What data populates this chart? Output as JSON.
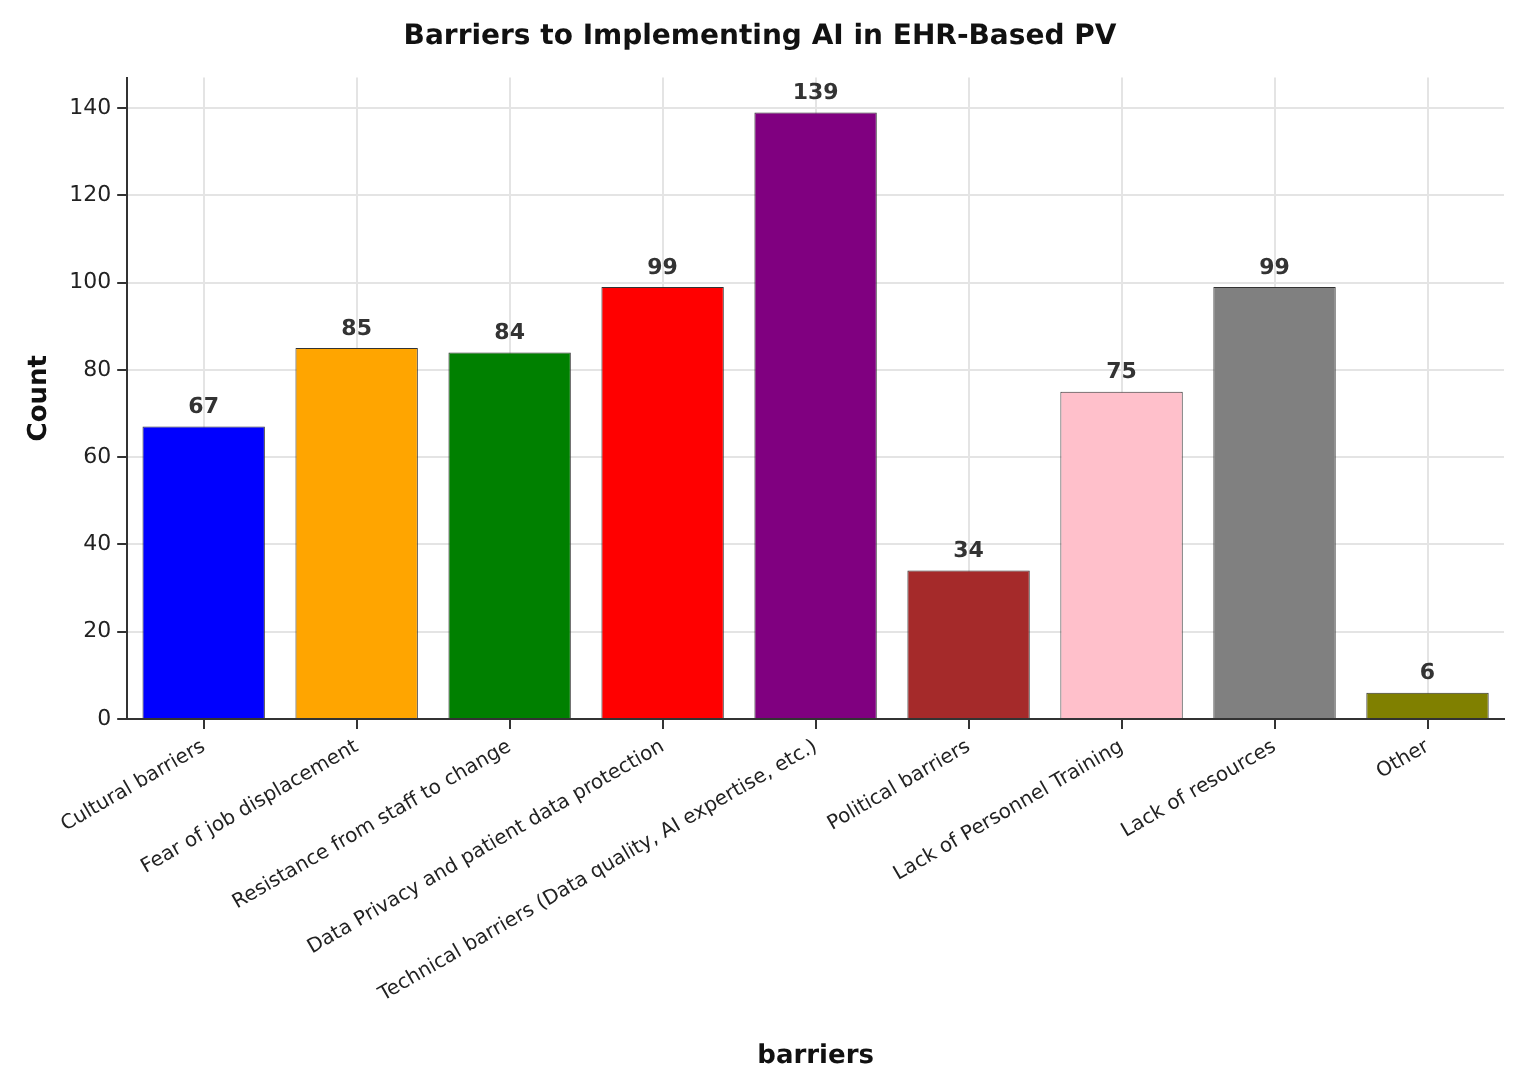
{
  "chart_data": {
    "type": "bar",
    "title": "Barriers to Implementing AI in EHR-Based PV",
    "xlabel": "barriers",
    "ylabel": "Count",
    "categories": [
      "Cultural barriers",
      "Fear of job displacement",
      "Resistance from staff to change",
      "Data Privacy and patient data protection",
      "Technical barriers (Data quality, AI expertise, etc.)",
      "Political barriers",
      "Lack of Personnel Training",
      "Lack of resources",
      "Other"
    ],
    "values": [
      67,
      85,
      84,
      99,
      139,
      34,
      75,
      99,
      6
    ],
    "colors": [
      "#0000ff",
      "#ffa500",
      "#008000",
      "#ff0000",
      "#800080",
      "#a52a2a",
      "#ffc0cb",
      "#808080",
      "#808000"
    ],
    "ylim": [
      0,
      147
    ],
    "yticks": [
      0,
      20,
      40,
      60,
      80,
      100,
      120,
      140
    ],
    "grid": true,
    "data_labels": true
  }
}
